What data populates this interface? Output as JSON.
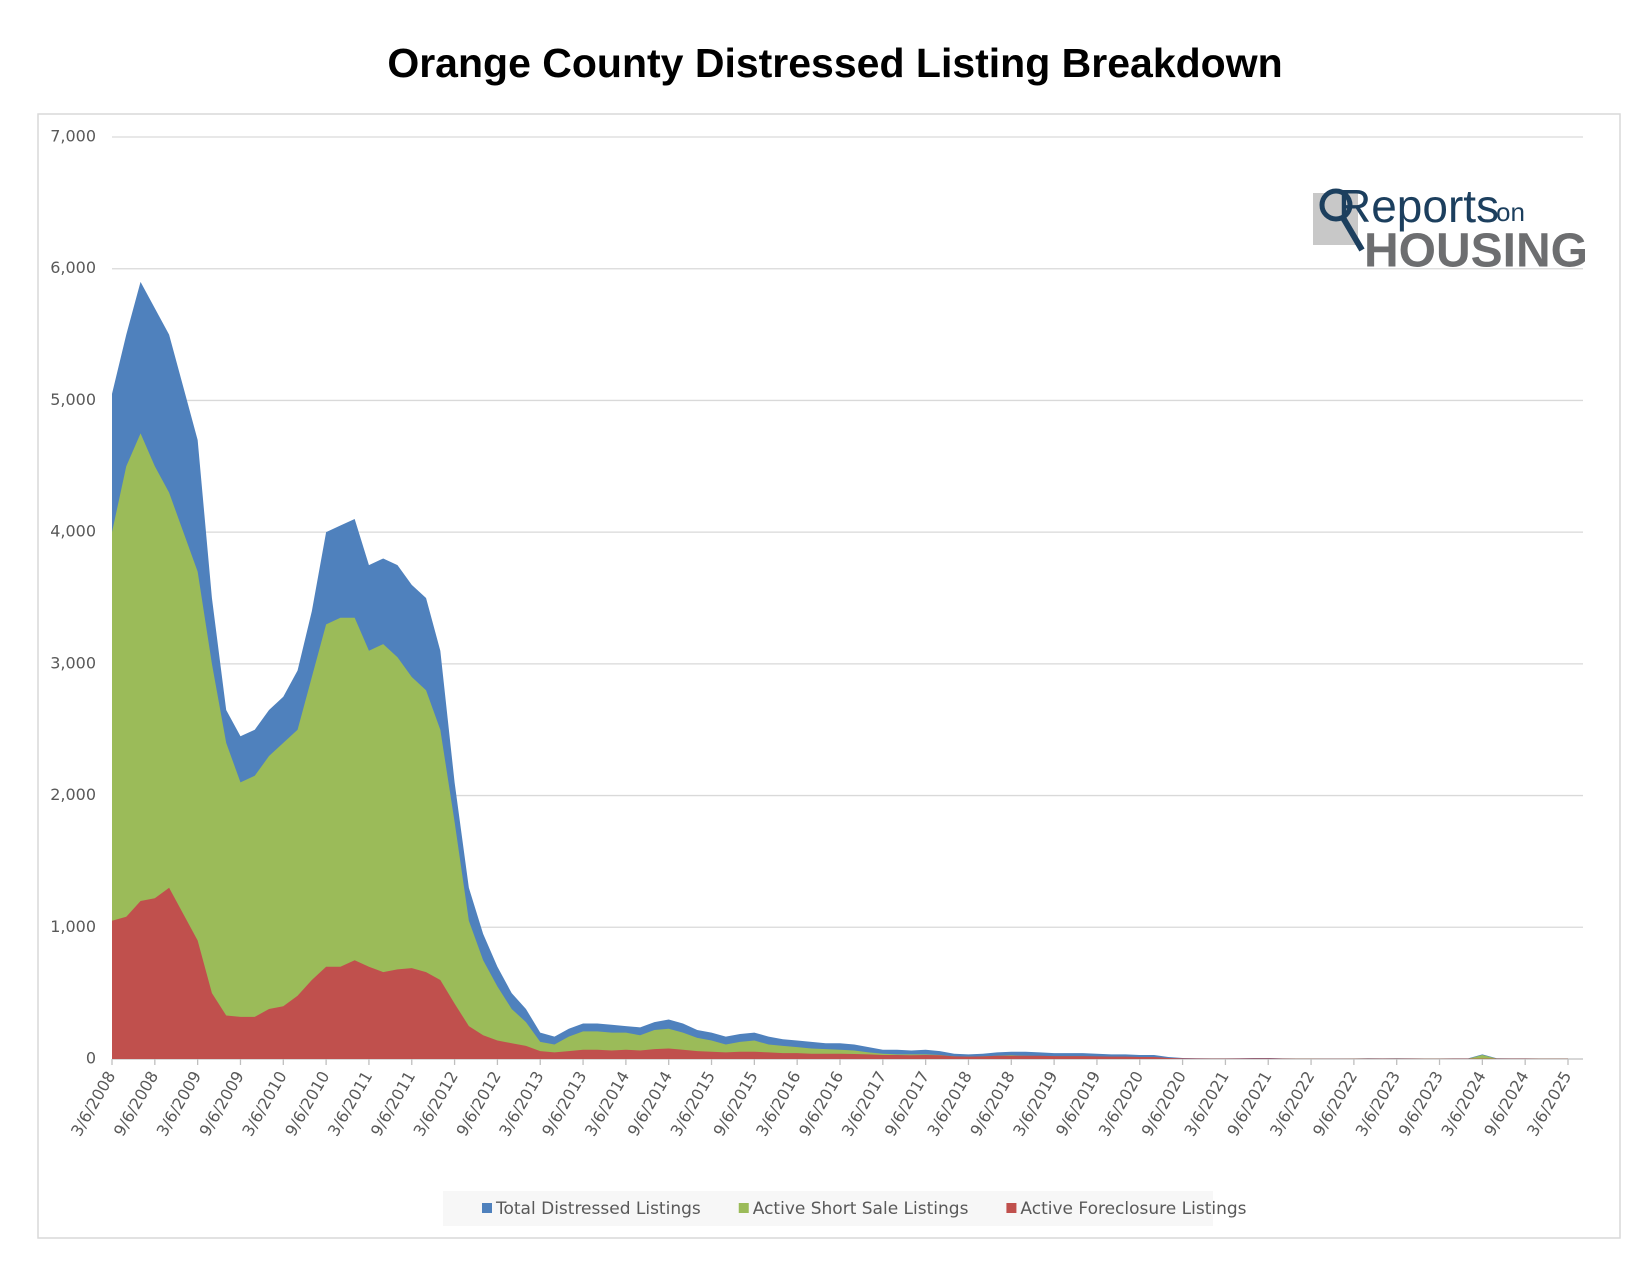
{
  "chart_data": {
    "type": "area",
    "title": "Orange County Distressed Listing Breakdown",
    "logo": {
      "word": "Reports",
      "small": "on",
      "big": "HOUSING"
    },
    "x": [
      "3/6/2008",
      "5/6/2008",
      "7/6/2008",
      "9/6/2008",
      "11/6/2008",
      "1/6/2009",
      "3/6/2009",
      "5/6/2009",
      "7/6/2009",
      "9/6/2009",
      "11/6/2009",
      "1/6/2010",
      "3/6/2010",
      "5/6/2010",
      "7/6/2010",
      "9/6/2010",
      "11/6/2010",
      "1/6/2011",
      "3/6/2011",
      "5/6/2011",
      "7/6/2011",
      "9/6/2011",
      "11/6/2011",
      "1/6/2012",
      "3/6/2012",
      "5/6/2012",
      "7/6/2012",
      "9/6/2012",
      "11/6/2012",
      "1/6/2013",
      "3/6/2013",
      "5/6/2013",
      "7/6/2013",
      "9/6/2013",
      "11/6/2013",
      "1/6/2014",
      "3/6/2014",
      "5/6/2014",
      "7/6/2014",
      "9/6/2014",
      "11/6/2014",
      "1/6/2015",
      "3/6/2015",
      "5/6/2015",
      "7/6/2015",
      "9/6/2015",
      "11/6/2015",
      "1/6/2016",
      "3/6/2016",
      "5/6/2016",
      "7/6/2016",
      "9/6/2016",
      "11/6/2016",
      "1/6/2017",
      "3/6/2017",
      "5/6/2017",
      "7/6/2017",
      "9/6/2017",
      "11/6/2017",
      "1/6/2018",
      "3/6/2018",
      "5/6/2018",
      "7/6/2018",
      "9/6/2018",
      "11/6/2018",
      "1/6/2019",
      "3/6/2019",
      "5/6/2019",
      "7/6/2019",
      "9/6/2019",
      "11/6/2019",
      "1/6/2020",
      "3/6/2020",
      "5/6/2020",
      "7/6/2020",
      "9/6/2020",
      "11/6/2020",
      "1/6/2021",
      "3/6/2021",
      "5/6/2021",
      "7/6/2021",
      "9/6/2021",
      "11/6/2021",
      "1/6/2022",
      "3/6/2022",
      "5/6/2022",
      "7/6/2022",
      "9/6/2022",
      "11/6/2022",
      "1/6/2023",
      "3/6/2023",
      "5/6/2023",
      "7/6/2023",
      "9/6/2023",
      "11/6/2023",
      "1/6/2024",
      "3/6/2024",
      "5/6/2024",
      "7/6/2024",
      "9/6/2024",
      "11/6/2024",
      "1/6/2025",
      "3/6/2025"
    ],
    "xtick_step": 3,
    "series": [
      {
        "name": "Total Distressed Listings",
        "color": "#4f81bd",
        "values": [
          5050,
          5500,
          5900,
          5700,
          5500,
          5100,
          4700,
          3500,
          2650,
          2450,
          2500,
          2650,
          2750,
          2950,
          3400,
          4000,
          4050,
          4100,
          3750,
          3800,
          3750,
          3600,
          3500,
          3100,
          2100,
          1300,
          950,
          700,
          500,
          380,
          200,
          170,
          230,
          270,
          270,
          260,
          250,
          240,
          280,
          300,
          270,
          220,
          200,
          170,
          190,
          200,
          170,
          150,
          140,
          130,
          120,
          120,
          110,
          90,
          70,
          70,
          65,
          70,
          60,
          40,
          35,
          40,
          50,
          55,
          55,
          50,
          45,
          45,
          45,
          40,
          35,
          35,
          30,
          30,
          15,
          8,
          6,
          5,
          5,
          6,
          8,
          8,
          5,
          4,
          4,
          3,
          3,
          4,
          6,
          5,
          6,
          5,
          4,
          4,
          5,
          5,
          35,
          6,
          5,
          5,
          4,
          4,
          4
        ]
      },
      {
        "name": "Active Short Sale Listings",
        "color": "#9bbb59",
        "values": [
          4000,
          4500,
          4750,
          4500,
          4300,
          4000,
          3700,
          3000,
          2400,
          2100,
          2150,
          2300,
          2400,
          2500,
          2900,
          3300,
          3350,
          3350,
          3100,
          3150,
          3050,
          2900,
          2800,
          2500,
          1800,
          1050,
          750,
          550,
          380,
          280,
          130,
          110,
          170,
          210,
          210,
          200,
          200,
          180,
          220,
          230,
          200,
          160,
          140,
          110,
          130,
          140,
          110,
          100,
          90,
          80,
          75,
          70,
          65,
          50,
          40,
          35,
          35,
          35,
          30,
          20,
          18,
          20,
          25,
          28,
          25,
          22,
          20,
          20,
          20,
          18,
          15,
          15,
          12,
          12,
          5,
          3,
          2,
          2,
          2,
          2,
          3,
          3,
          2,
          2,
          2,
          1,
          1,
          2,
          3,
          2,
          3,
          2,
          2,
          2,
          2,
          2,
          30,
          3,
          2,
          2,
          2,
          2,
          2
        ]
      },
      {
        "name": "Active Foreclosure Listings",
        "color": "#c0504d",
        "values": [
          1050,
          1080,
          1200,
          1220,
          1300,
          1100,
          900,
          500,
          330,
          320,
          320,
          380,
          400,
          480,
          600,
          700,
          700,
          750,
          700,
          660,
          680,
          690,
          660,
          600,
          420,
          250,
          180,
          140,
          120,
          100,
          60,
          50,
          60,
          70,
          70,
          65,
          70,
          65,
          75,
          80,
          70,
          60,
          55,
          50,
          55,
          55,
          50,
          45,
          45,
          40,
          40,
          40,
          38,
          35,
          30,
          30,
          28,
          30,
          28,
          20,
          18,
          20,
          25,
          25,
          25,
          25,
          22,
          22,
          22,
          20,
          18,
          18,
          15,
          15,
          8,
          5,
          4,
          3,
          3,
          4,
          5,
          5,
          3,
          2,
          2,
          2,
          2,
          2,
          3,
          3,
          3,
          3,
          2,
          2,
          3,
          3,
          3,
          3,
          3,
          3,
          2,
          2,
          2
        ]
      }
    ],
    "ylim": [
      0,
      7000
    ],
    "yticks": [
      0,
      {
        "value": 1000,
        "label": "1,000"
      },
      {
        "value": 2000,
        "label": "2,000"
      },
      {
        "value": 3000,
        "label": "3,000"
      },
      {
        "value": 4000,
        "label": "4,000"
      },
      {
        "value": 5000,
        "label": "5,000"
      },
      {
        "value": 6000,
        "label": "6,000"
      },
      {
        "value": 7000,
        "label": "7,000"
      }
    ],
    "grid": true,
    "legend": "bottom"
  }
}
